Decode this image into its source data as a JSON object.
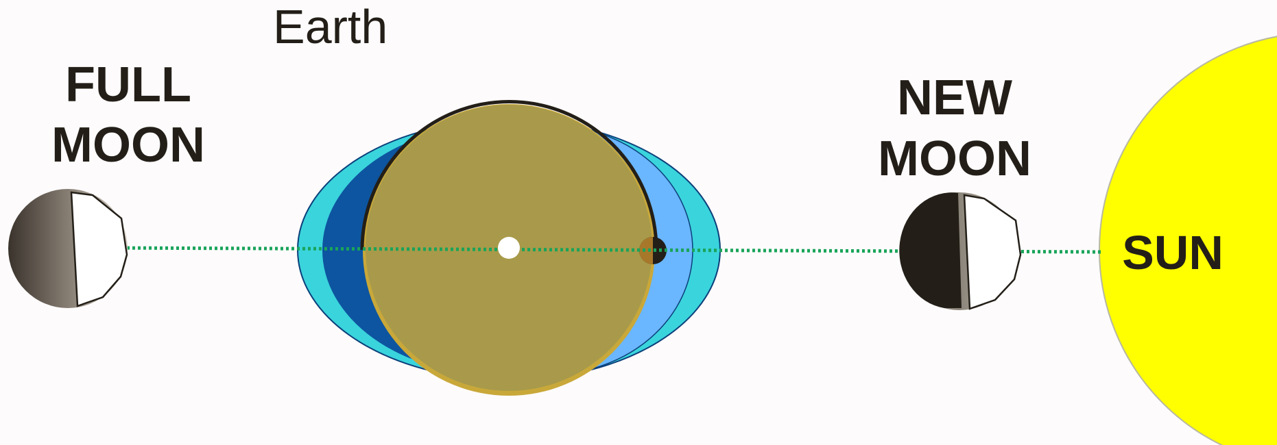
{
  "labels": {
    "earth": "Earth",
    "full_moon_line1": "FULL",
    "full_moon_line2": "MOON",
    "new_moon_line1": "NEW",
    "new_moon_line2": "MOON",
    "sun": "SUN"
  },
  "colors": {
    "background": "#fdfbfc",
    "text": "#231f18",
    "sun": "#ffff00",
    "earth_body": "#a89a4a",
    "earth_rim": "#c9a83a",
    "bulge_outer": "#3ad4dc",
    "bulge_dark": "#0d55a0",
    "bulge_light": "#6ab6ff",
    "alignment_line": "#1aa45a",
    "moon_dark": "#231f18",
    "moon_lit": "#ffffff"
  },
  "icons": {
    "full_moon": "full-moon-icon",
    "new_moon": "new-moon-icon",
    "sun": "sun-icon",
    "earth": "earth-icon",
    "observer": "observer-dot-icon"
  }
}
